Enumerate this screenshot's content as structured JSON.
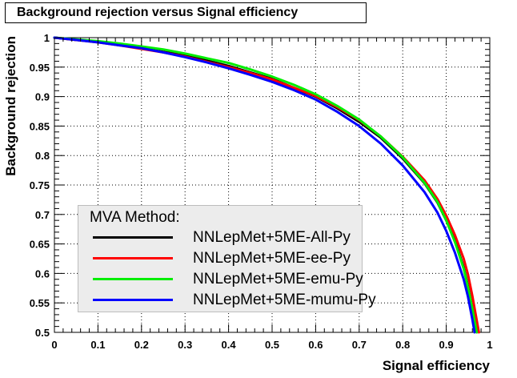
{
  "chart_data": {
    "type": "line",
    "title": "Background rejection versus Signal efficiency",
    "xlabel": "Signal efficiency",
    "ylabel": "Background rejection",
    "xlim": [
      0,
      1
    ],
    "ylim": [
      0.5,
      1
    ],
    "xticks": [
      "0",
      "0.1",
      "0.2",
      "0.3",
      "0.4",
      "0.5",
      "0.6",
      "0.7",
      "0.8",
      "0.9",
      "1"
    ],
    "yticks": [
      "0.5",
      "0.55",
      "0.6",
      "0.65",
      "0.7",
      "0.75",
      "0.8",
      "0.85",
      "0.9",
      "0.95",
      "1"
    ],
    "grid": true,
    "legend_placement": "bottom-left",
    "legend_header": "MVA Method:",
    "series": [
      {
        "name": "NNLepMet+5ME-All-Py",
        "color": "#000000",
        "x": [
          0.0,
          0.05,
          0.1,
          0.15,
          0.2,
          0.25,
          0.3,
          0.35,
          0.4,
          0.45,
          0.5,
          0.55,
          0.6,
          0.65,
          0.7,
          0.75,
          0.8,
          0.85,
          0.88,
          0.9,
          0.92,
          0.94,
          0.95,
          0.96,
          0.97
        ],
        "y": [
          1.0,
          0.996,
          0.993,
          0.988,
          0.982,
          0.976,
          0.97,
          0.961,
          0.952,
          0.941,
          0.93,
          0.915,
          0.9,
          0.88,
          0.857,
          0.83,
          0.795,
          0.753,
          0.72,
          0.69,
          0.655,
          0.61,
          0.578,
          0.54,
          0.5
        ]
      },
      {
        "name": "NNLepMet+5ME-ee-Py",
        "color": "#ff0000",
        "x": [
          0.0,
          0.05,
          0.1,
          0.15,
          0.2,
          0.25,
          0.3,
          0.35,
          0.4,
          0.45,
          0.5,
          0.55,
          0.6,
          0.65,
          0.7,
          0.75,
          0.8,
          0.85,
          0.88,
          0.9,
          0.92,
          0.94,
          0.95,
          0.96,
          0.975
        ],
        "y": [
          1.0,
          0.996,
          0.992,
          0.987,
          0.981,
          0.975,
          0.968,
          0.959,
          0.95,
          0.94,
          0.929,
          0.915,
          0.901,
          0.882,
          0.86,
          0.832,
          0.798,
          0.758,
          0.726,
          0.698,
          0.665,
          0.625,
          0.598,
          0.562,
          0.5
        ]
      },
      {
        "name": "NNLepMet+5ME-emu-Py",
        "color": "#00ee00",
        "x": [
          0.0,
          0.05,
          0.1,
          0.15,
          0.2,
          0.25,
          0.3,
          0.35,
          0.4,
          0.45,
          0.5,
          0.55,
          0.6,
          0.65,
          0.7,
          0.75,
          0.8,
          0.85,
          0.88,
          0.9,
          0.92,
          0.94,
          0.95,
          0.96,
          0.97
        ],
        "y": [
          1.0,
          0.997,
          0.994,
          0.99,
          0.985,
          0.98,
          0.973,
          0.965,
          0.957,
          0.946,
          0.934,
          0.92,
          0.904,
          0.884,
          0.861,
          0.832,
          0.797,
          0.754,
          0.721,
          0.69,
          0.653,
          0.608,
          0.576,
          0.54,
          0.5
        ]
      },
      {
        "name": "NNLepMet+5ME-mumu-Py",
        "color": "#0000ff",
        "x": [
          0.0,
          0.05,
          0.1,
          0.15,
          0.2,
          0.25,
          0.3,
          0.35,
          0.4,
          0.45,
          0.5,
          0.55,
          0.6,
          0.65,
          0.7,
          0.75,
          0.8,
          0.85,
          0.88,
          0.9,
          0.92,
          0.94,
          0.95,
          0.96,
          0.965
        ],
        "y": [
          1.0,
          0.996,
          0.992,
          0.987,
          0.982,
          0.975,
          0.967,
          0.958,
          0.948,
          0.937,
          0.925,
          0.911,
          0.895,
          0.874,
          0.85,
          0.82,
          0.783,
          0.738,
          0.703,
          0.672,
          0.635,
          0.59,
          0.56,
          0.522,
          0.5
        ]
      }
    ]
  }
}
